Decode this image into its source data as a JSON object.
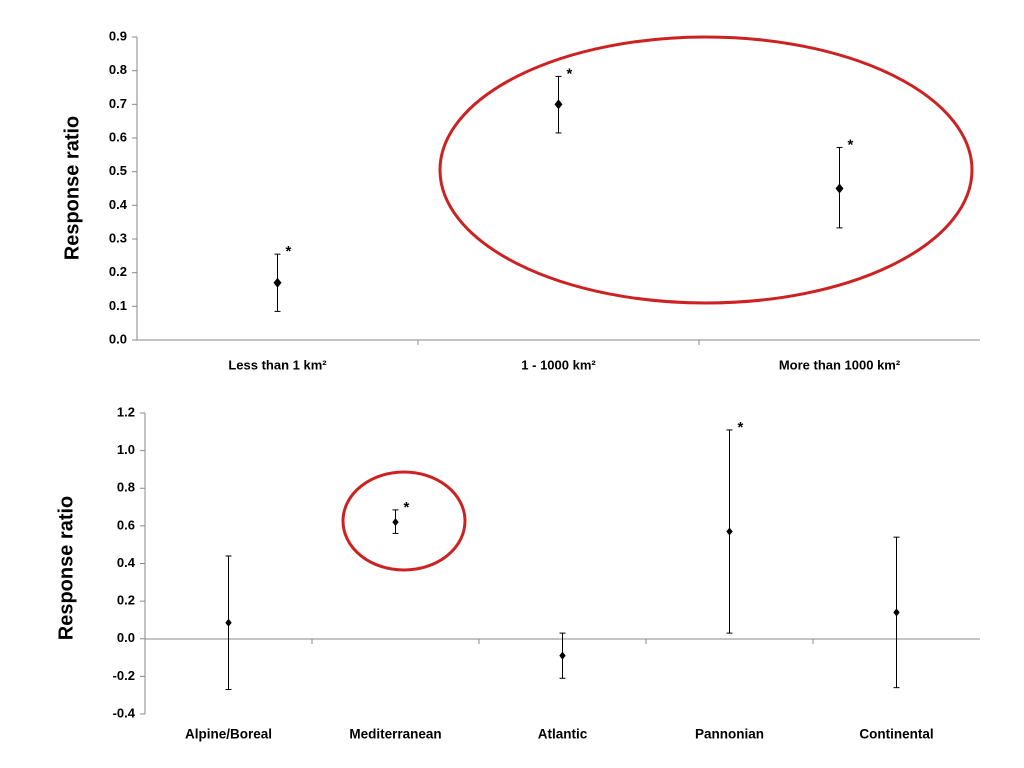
{
  "chart_data": [
    {
      "type": "scatter",
      "title": "",
      "xlabel": "",
      "ylabel": "Response ratio",
      "ylim": [
        0.0,
        0.9
      ],
      "ytick_labels": [
        "0.0",
        "0.1",
        "0.2",
        "0.3",
        "0.4",
        "0.5",
        "0.6",
        "0.7",
        "0.8",
        "0.9"
      ],
      "categories": [
        "Less than 1 km²",
        "1 - 1000 km²",
        "More than 1000 km²"
      ],
      "values": [
        0.17,
        0.7,
        0.45
      ],
      "ci_lower": [
        0.085,
        0.615,
        0.333
      ],
      "ci_upper": [
        0.255,
        0.783,
        0.572
      ],
      "annotations": [
        "*",
        "*",
        "*"
      ],
      "highlighted": [
        "1 - 1000 km²",
        "More than 1000 km²"
      ],
      "highlight_color": "#cc2222",
      "grid": false
    },
    {
      "type": "scatter",
      "title": "",
      "xlabel": "",
      "ylabel": "Response ratio",
      "ylim": [
        -0.4,
        1.2
      ],
      "ytick_labels": [
        "-0.4",
        "-0.2",
        "0.0",
        "0.2",
        "0.4",
        "0.6",
        "0.8",
        "1.0",
        "1.2"
      ],
      "categories": [
        "Alpine/Boreal",
        "Mediterranean",
        "Atlantic",
        "Pannonian",
        "Continental"
      ],
      "values": [
        0.085,
        0.62,
        -0.09,
        0.57,
        0.14
      ],
      "ci_lower": [
        -0.27,
        0.56,
        -0.21,
        0.03,
        -0.26
      ],
      "ci_upper": [
        0.44,
        0.685,
        0.03,
        1.11,
        0.54
      ],
      "annotations": [
        "",
        "*",
        "",
        "*",
        ""
      ],
      "highlighted": [
        "Mediterranean"
      ],
      "highlight_color": "#cc2222",
      "grid": false
    }
  ]
}
